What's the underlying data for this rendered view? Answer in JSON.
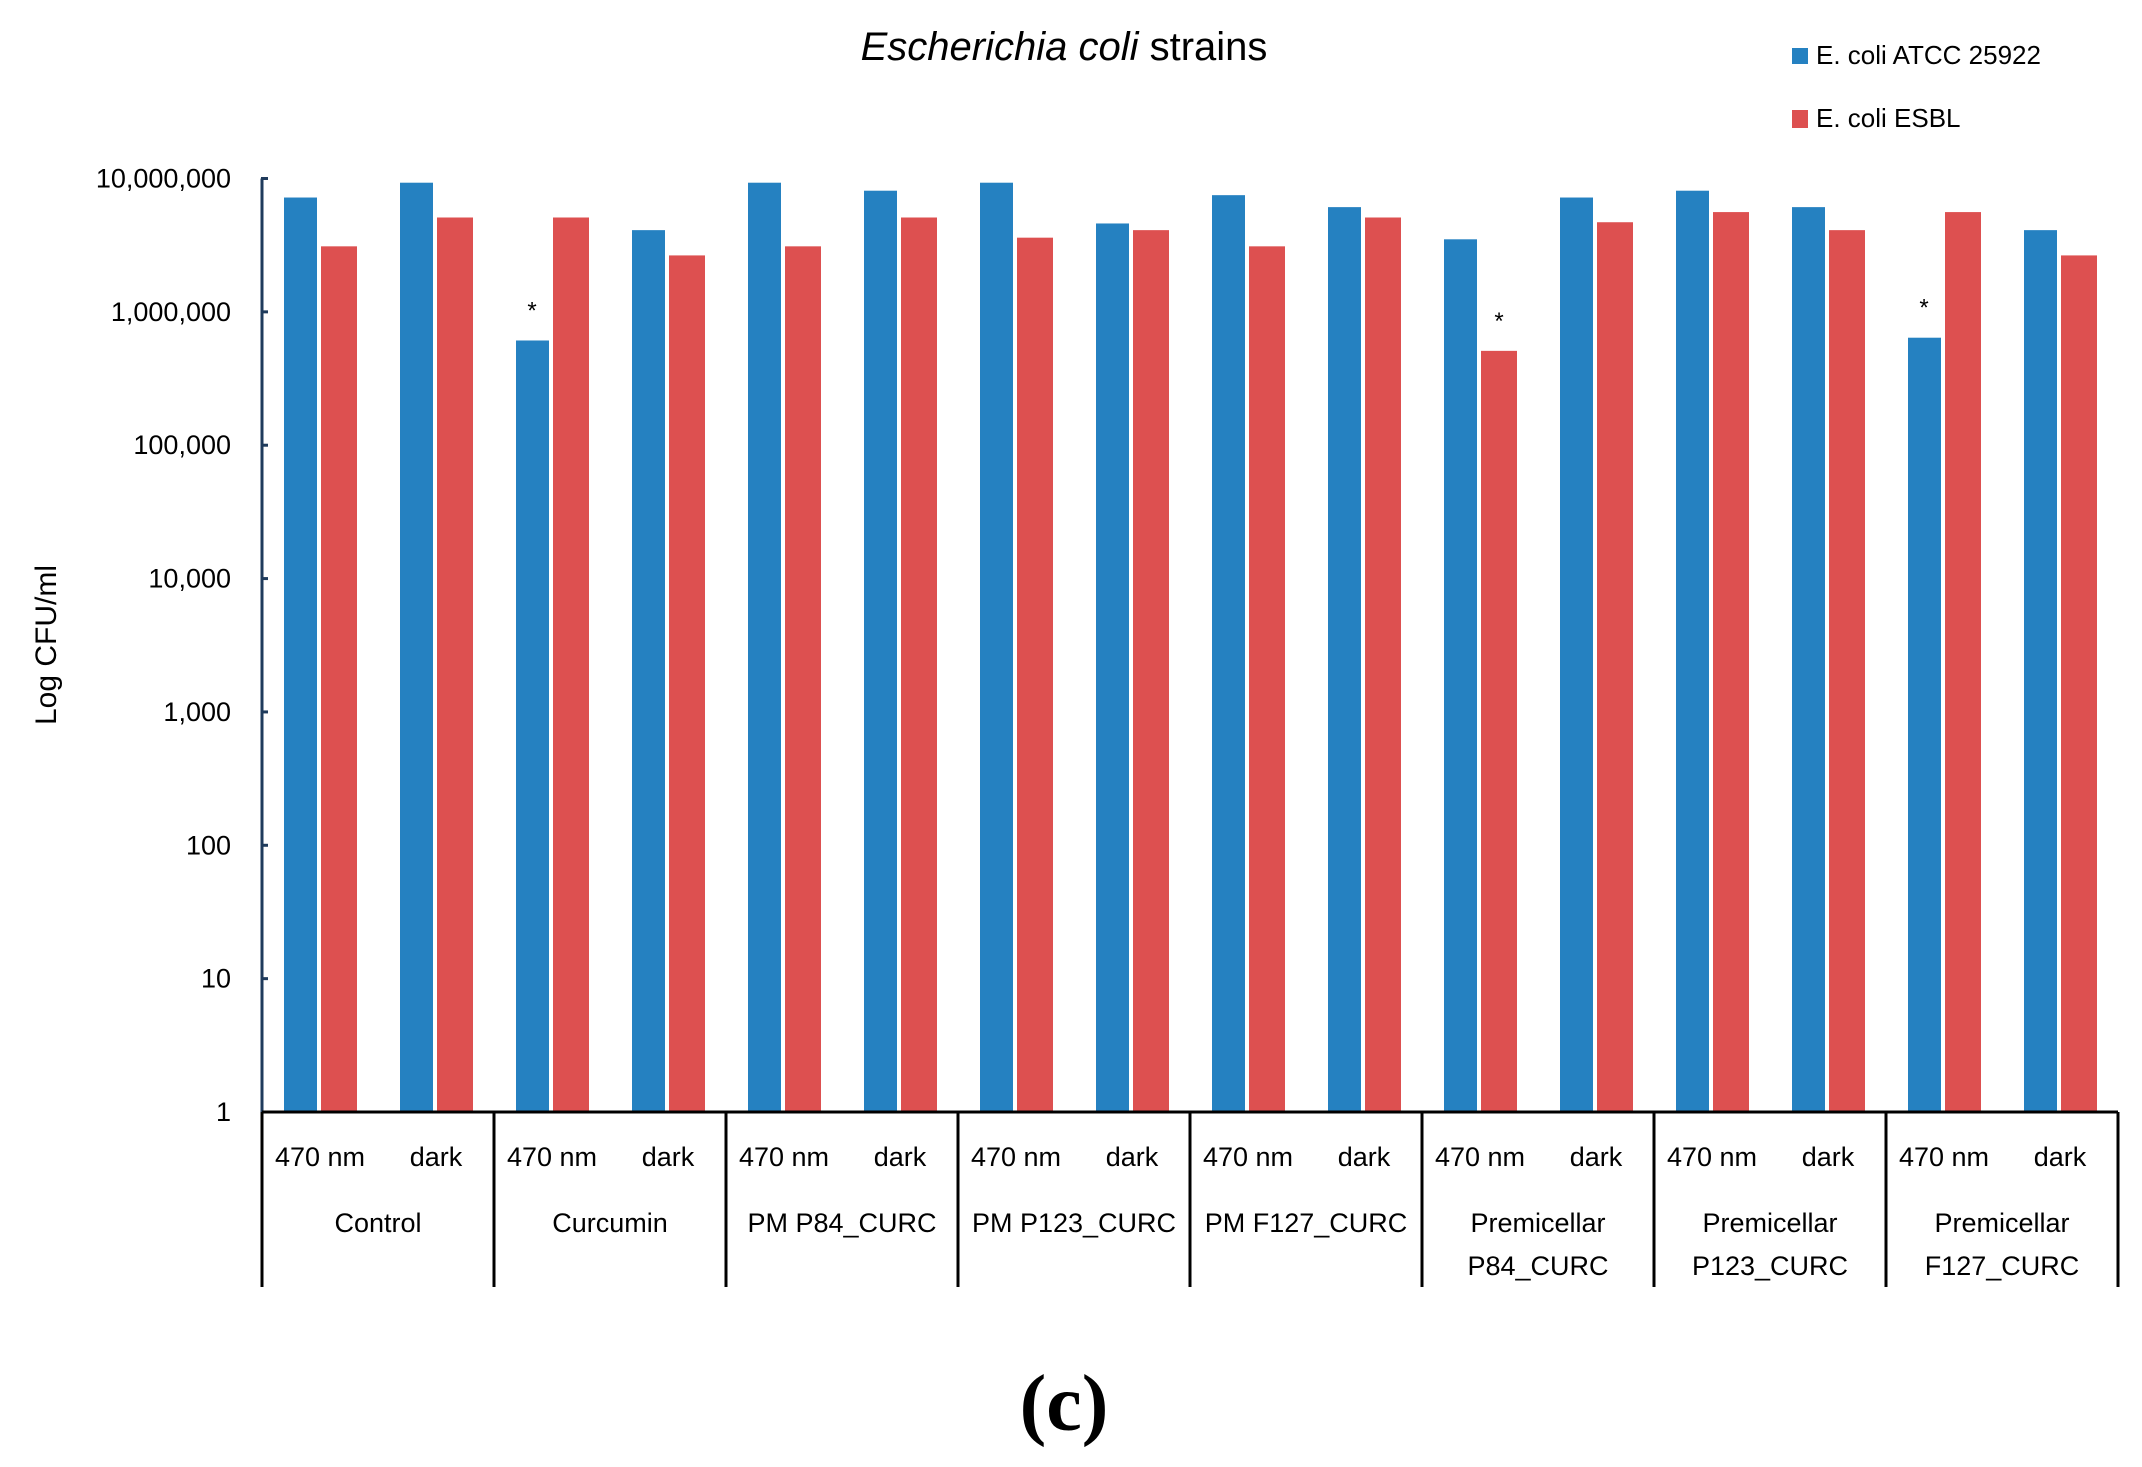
{
  "chart_data": {
    "type": "bar",
    "title": {
      "italic": "Escherichia coli",
      "normal": " strains"
    },
    "ylabel": "Log CFU/ml",
    "xlabel": "",
    "yscale": "log",
    "ylim": [
      1,
      10000000
    ],
    "yticks": [
      1,
      10,
      100,
      1000,
      10000,
      100000,
      1000000,
      10000000
    ],
    "ytick_labels": [
      "1",
      "10",
      "100",
      "1,000",
      "10,000",
      "100,000",
      "1,000,000",
      "10,000,000"
    ],
    "grid": false,
    "legend_position": "top-right",
    "groups": [
      {
        "lines": [
          "Control"
        ]
      },
      {
        "lines": [
          "Curcumin"
        ]
      },
      {
        "lines": [
          "PM P84_CURC"
        ]
      },
      {
        "lines": [
          "PM P123_CURC"
        ]
      },
      {
        "lines": [
          "PM F127_CURC"
        ]
      },
      {
        "lines": [
          "Premicellar",
          "P84_CURC"
        ]
      },
      {
        "lines": [
          "Premicellar",
          "P123_CURC"
        ]
      },
      {
        "lines": [
          "Premicellar",
          "F127_CURC"
        ]
      }
    ],
    "subcategories": [
      "470 nm",
      "dark"
    ],
    "series": [
      {
        "name": "E. coli ATCC 25922",
        "color": "#2581C1",
        "values": [
          7200000,
          9300000,
          610000,
          4100000,
          9300000,
          8100000,
          9300000,
          4600000,
          7500000,
          6100000,
          3500000,
          7200000,
          8100000,
          6100000,
          640000,
          4100000
        ]
      },
      {
        "name": "E. coli ESBL",
        "color": "#DD5050",
        "values": [
          3100000,
          5100000,
          5100000,
          2650000,
          3100000,
          5100000,
          3600000,
          4100000,
          3100000,
          5100000,
          510000,
          4700000,
          5600000,
          4100000,
          5600000,
          2650000
        ]
      }
    ],
    "annotations": [
      {
        "text": "*",
        "bar_index": 2,
        "series": 0
      },
      {
        "text": "*",
        "bar_index": 10,
        "series": 1
      },
      {
        "text": "*",
        "bar_index": 14,
        "series": 0
      }
    ]
  },
  "panel_label": "(c)",
  "colors": {
    "axis": "#1F3B5C"
  }
}
